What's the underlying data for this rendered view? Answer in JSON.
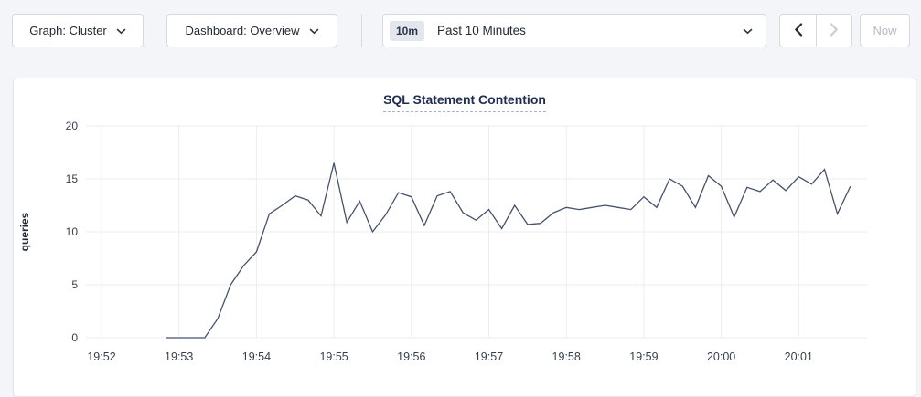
{
  "toolbar": {
    "graph_dropdown": {
      "label": "Graph: Cluster",
      "icon": "chevron-down-icon"
    },
    "dashboard_dropdown": {
      "label": "Dashboard: Overview",
      "icon": "chevron-down-icon"
    },
    "time_picker": {
      "badge": "10m",
      "label": "Past 10 Minutes",
      "icon": "chevron-down-icon"
    },
    "prev_button": {
      "icon": "chevron-left-icon",
      "disabled": false
    },
    "next_button": {
      "icon": "chevron-right-icon",
      "disabled": true
    },
    "now_button": {
      "label": "Now",
      "disabled": true
    }
  },
  "chart_data": {
    "type": "line",
    "title": "SQL Statement Contention",
    "xlabel": "",
    "ylabel": "queries",
    "ylim": [
      0,
      20
    ],
    "y_ticks": [
      0,
      5,
      10,
      15,
      20
    ],
    "x_ticks": [
      "19:52",
      "19:53",
      "19:54",
      "19:55",
      "19:56",
      "19:57",
      "19:58",
      "19:59",
      "20:00",
      "20:01"
    ],
    "grid": true,
    "legend_position": "none",
    "series": [
      {
        "start_time": "19:52:50",
        "interval_seconds": 10,
        "values": [
          0,
          0,
          0,
          0,
          1.8,
          5,
          6.8,
          8.1,
          11.7,
          12.5,
          13.4,
          13,
          11.5,
          16.5,
          10.9,
          12.9,
          10,
          11.6,
          13.7,
          13.3,
          10.6,
          13.4,
          13.8,
          11.8,
          11.1,
          12.1,
          10.3,
          12.5,
          10.7,
          10.8,
          11.8,
          12.3,
          12.1,
          12.3,
          12.5,
          12.3,
          12.1,
          13.3,
          12.3,
          15,
          14.3,
          12.3,
          15.3,
          14.3,
          11.4,
          14.2,
          13.8,
          14.9,
          13.9,
          15.2,
          14.5,
          15.9,
          11.7,
          14.3
        ]
      }
    ],
    "colors": {
      "line": "#45526e",
      "grid": "#ededf0",
      "title": "#1c2c55",
      "tick": "#363e4b"
    }
  }
}
